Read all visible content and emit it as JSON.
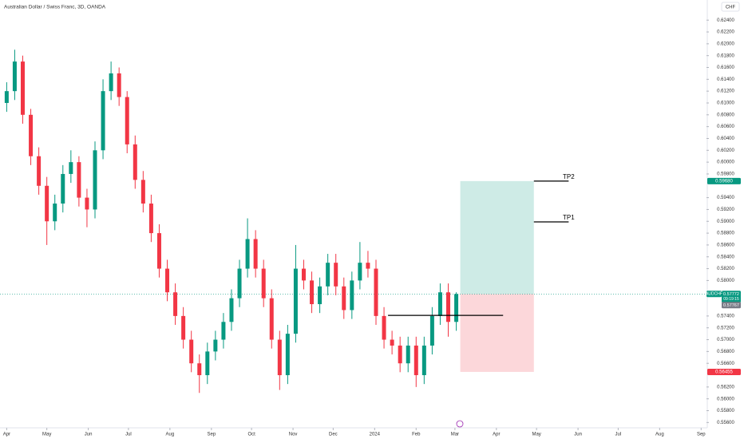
{
  "header": {
    "title": "Australian Dollar / Swiss Franc, 3D, OANDA",
    "currency": "CHF"
  },
  "chart_data": {
    "type": "candlestick",
    "xlim": [
      -5,
      523
    ],
    "ylim": [
      0.5551,
      0.6274
    ],
    "x": [
      0,
      6,
      12,
      18,
      24,
      30,
      36,
      42,
      48,
      54,
      60,
      66,
      72,
      78,
      84,
      90,
      96,
      102,
      108,
      114,
      120,
      126,
      132,
      138,
      144,
      150,
      156,
      162,
      168,
      174,
      180,
      186,
      192,
      198,
      204,
      210,
      216,
      222,
      228,
      234,
      240,
      246,
      252,
      258,
      264,
      270,
      276,
      282,
      288,
      294,
      300,
      306,
      312,
      318,
      324,
      330,
      336
    ],
    "open": [
      0.61,
      0.612,
      0.617,
      0.608,
      0.601,
      0.596,
      0.59,
      0.593,
      0.598,
      0.6,
      0.594,
      0.592,
      0.602,
      0.612,
      0.615,
      0.611,
      0.603,
      0.597,
      0.593,
      0.588,
      0.582,
      0.578,
      0.574,
      0.57,
      0.566,
      0.564,
      0.568,
      0.57,
      0.573,
      0.577,
      0.582,
      0.587,
      0.582,
      0.577,
      0.57,
      0.564,
      0.571,
      0.582,
      0.58,
      0.576,
      0.579,
      0.583,
      0.579,
      0.575,
      0.58,
      0.583,
      0.582,
      0.574,
      0.57,
      0.569,
      0.566,
      0.569,
      0.564,
      0.569,
      0.574,
      0.578,
      0.573
    ],
    "high": [
      0.6135,
      0.619,
      0.618,
      0.609,
      0.6025,
      0.5975,
      0.5945,
      0.5995,
      0.602,
      0.601,
      0.5955,
      0.6035,
      0.614,
      0.617,
      0.616,
      0.612,
      0.6045,
      0.5985,
      0.5945,
      0.5895,
      0.5835,
      0.5795,
      0.5755,
      0.5715,
      0.5675,
      0.5695,
      0.5715,
      0.5745,
      0.5785,
      0.5835,
      0.5905,
      0.5885,
      0.5835,
      0.5785,
      0.5715,
      0.5725,
      0.586,
      0.5835,
      0.5815,
      0.5805,
      0.5845,
      0.5845,
      0.5805,
      0.5815,
      0.5865,
      0.585,
      0.5835,
      0.5755,
      0.5715,
      0.5705,
      0.5705,
      0.5705,
      0.5705,
      0.5755,
      0.5795,
      0.5795,
      0.578
    ],
    "low": [
      0.6085,
      0.6105,
      0.6065,
      0.5995,
      0.5945,
      0.586,
      0.5885,
      0.5915,
      0.5965,
      0.5925,
      0.589,
      0.5905,
      0.6005,
      0.6105,
      0.6095,
      0.6015,
      0.5955,
      0.5915,
      0.5865,
      0.5805,
      0.5765,
      0.5725,
      0.5685,
      0.5645,
      0.561,
      0.5625,
      0.5665,
      0.5685,
      0.5715,
      0.5755,
      0.5805,
      0.5805,
      0.5755,
      0.5685,
      0.5615,
      0.5625,
      0.5695,
      0.5785,
      0.5745,
      0.5745,
      0.5775,
      0.5775,
      0.5735,
      0.5735,
      0.5785,
      0.5805,
      0.5725,
      0.5685,
      0.5675,
      0.5645,
      0.5645,
      0.562,
      0.5625,
      0.5675,
      0.5725,
      0.5705,
      0.5715
    ],
    "close": [
      0.612,
      0.617,
      0.608,
      0.601,
      0.596,
      0.59,
      0.593,
      0.598,
      0.6,
      0.594,
      0.592,
      0.602,
      0.612,
      0.615,
      0.611,
      0.603,
      0.597,
      0.593,
      0.588,
      0.582,
      0.578,
      0.574,
      0.57,
      0.566,
      0.564,
      0.568,
      0.57,
      0.573,
      0.577,
      0.582,
      0.587,
      0.582,
      0.577,
      0.57,
      0.564,
      0.571,
      0.582,
      0.58,
      0.576,
      0.579,
      0.583,
      0.579,
      0.575,
      0.58,
      0.583,
      0.582,
      0.574,
      0.57,
      0.569,
      0.566,
      0.569,
      0.564,
      0.569,
      0.574,
      0.578,
      0.573,
      0.5777
    ],
    "up_color": "#089981",
    "down_color": "#f23645",
    "yticks": [
      {
        "value": 0.556,
        "label": "0.55600"
      },
      {
        "value": 0.558,
        "label": "0.55800"
      },
      {
        "value": 0.56,
        "label": "0.56000"
      },
      {
        "value": 0.562,
        "label": "0.56200"
      },
      {
        "value": 0.566,
        "label": "0.56600"
      },
      {
        "value": 0.568,
        "label": "0.56800"
      },
      {
        "value": 0.57,
        "label": "0.57000"
      },
      {
        "value": 0.572,
        "label": "0.57200"
      },
      {
        "value": 0.574,
        "label": "0.57400"
      },
      {
        "value": 0.58,
        "label": "0.58000"
      },
      {
        "value": 0.582,
        "label": "0.58200"
      },
      {
        "value": 0.584,
        "label": "0.58400"
      },
      {
        "value": 0.586,
        "label": "0.58600"
      },
      {
        "value": 0.588,
        "label": "0.58800"
      },
      {
        "value": 0.59,
        "label": "0.59000"
      },
      {
        "value": 0.592,
        "label": "0.59200"
      },
      {
        "value": 0.594,
        "label": "0.59400"
      },
      {
        "value": 0.598,
        "label": "0.59800"
      },
      {
        "value": 0.6,
        "label": "0.60000"
      },
      {
        "value": 0.602,
        "label": "0.60200"
      },
      {
        "value": 0.604,
        "label": "0.60400"
      },
      {
        "value": 0.606,
        "label": "0.60600"
      },
      {
        "value": 0.608,
        "label": "0.60800"
      },
      {
        "value": 0.61,
        "label": "0.61000"
      },
      {
        "value": 0.612,
        "label": "0.61200"
      },
      {
        "value": 0.614,
        "label": "0.61400"
      },
      {
        "value": 0.616,
        "label": "0.61600"
      },
      {
        "value": 0.618,
        "label": "0.61800"
      },
      {
        "value": 0.62,
        "label": "0.62000"
      },
      {
        "value": 0.622,
        "label": "0.62200"
      },
      {
        "value": 0.624,
        "label": "0.62400"
      }
    ],
    "xticks": [
      {
        "value": 0,
        "label": "Apr"
      },
      {
        "value": 30,
        "label": "May"
      },
      {
        "value": 61,
        "label": "Jun"
      },
      {
        "value": 91,
        "label": "Jul"
      },
      {
        "value": 122,
        "label": "Aug"
      },
      {
        "value": 153,
        "label": "Sep"
      },
      {
        "value": 183,
        "label": "Oct"
      },
      {
        "value": 214,
        "label": "Nov"
      },
      {
        "value": 244,
        "label": "Dec"
      },
      {
        "value": 275,
        "label": "2024"
      },
      {
        "value": 306,
        "label": "Feb"
      },
      {
        "value": 335,
        "label": "Mar"
      },
      {
        "value": 366,
        "label": "Apr"
      },
      {
        "value": 396,
        "label": "May"
      },
      {
        "value": 427,
        "label": "Jun"
      },
      {
        "value": 457,
        "label": "Jul"
      },
      {
        "value": 488,
        "label": "Aug"
      },
      {
        "value": 519,
        "label": "Sep"
      }
    ],
    "position": {
      "x": [
        339,
        394
      ],
      "entry": 0.57772,
      "target": {
        "value": 0.5968,
        "label": "0.59680"
      },
      "stop": 0.56455,
      "target_color": "#089981",
      "stop_color": "#f23645"
    },
    "lines": [
      {
        "x": [
          285,
          371
        ],
        "y": 0.5741
      },
      {
        "name": "TP1",
        "x": [
          394,
          420
        ],
        "y": 0.5899
      },
      {
        "name": "TP2",
        "x": [
          394,
          420
        ],
        "y": 0.5968
      }
    ],
    "symbol": "AUDCHF",
    "last": 0.57772,
    "countdown": "09:19:15",
    "bid": 0.57767
  }
}
